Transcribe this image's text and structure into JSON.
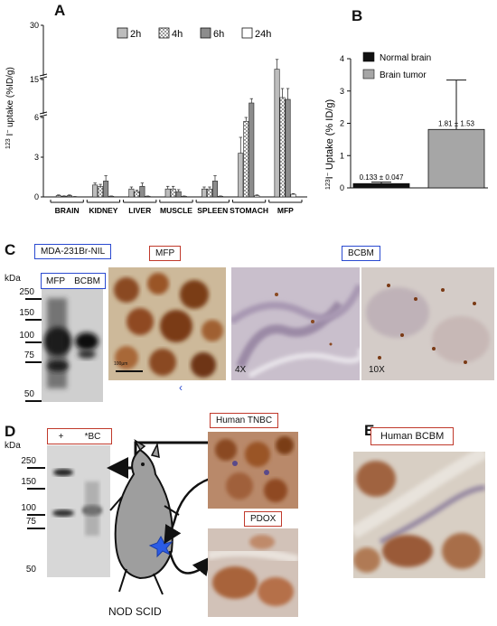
{
  "panels": {
    "a": "A",
    "b": "B",
    "c": "C",
    "d": "D",
    "e": "E"
  },
  "chart_data": [
    {
      "type": "bar",
      "ylabel": "123 I- uptake (%ID/g)",
      "ylabel_sup": "123",
      "ylabel_main": "I",
      "ylabel_rest": " uptake (%ID/g)",
      "y_ticks": [
        "0",
        "3",
        "6",
        "15",
        "30"
      ],
      "y_axis_break": true,
      "categories": [
        "BRAIN",
        "KIDNEY",
        "LIVER",
        "MUSCLE",
        "SPLEEN",
        "STOMACH",
        "MFP"
      ],
      "legend_placement": "top",
      "series": [
        {
          "name": "2h",
          "color": "#bdbdbd",
          "pattern": "solid",
          "values": [
            0.1,
            0.9,
            0.6,
            0.6,
            0.6,
            3.3,
            16.5
          ],
          "errors": [
            0.05,
            0.15,
            0.15,
            0.2,
            0.15,
            1.2,
            3.0
          ]
        },
        {
          "name": "4h",
          "color": "#e0e0e0",
          "pattern": "checker",
          "values": [
            0.05,
            0.8,
            0.4,
            0.6,
            0.6,
            5.7,
            10.0
          ],
          "errors": [
            0.03,
            0.15,
            0.1,
            0.2,
            0.15,
            0.3,
            2.5
          ]
        },
        {
          "name": "6h",
          "color": "#8c8c8c",
          "pattern": "solid",
          "values": [
            0.1,
            1.2,
            0.8,
            0.4,
            1.2,
            8.5,
            9.5
          ],
          "errors": [
            0.05,
            0.4,
            0.25,
            0.15,
            0.4,
            1.2,
            3.0
          ]
        },
        {
          "name": "24h",
          "color": "#ffffff",
          "pattern": "solid",
          "values": [
            0.02,
            0.05,
            0.05,
            0.05,
            0.05,
            0.1,
            0.2
          ],
          "errors": [
            0.01,
            0.02,
            0.02,
            0.02,
            0.02,
            0.05,
            0.05
          ]
        }
      ]
    },
    {
      "type": "bar",
      "ylabel_sup": "123",
      "ylabel_main": "I",
      "ylabel_rest": " Uptake (% ID/g)",
      "ylim": [
        0,
        4
      ],
      "y_ticks": [
        "0",
        "1",
        "2",
        "3",
        "4"
      ],
      "legend_placement": "top-left",
      "series": [
        {
          "name": "Normal brain",
          "color": "#111111",
          "values": [
            0.133
          ],
          "errors": [
            0.047
          ],
          "label": "0.133 ± 0.047"
        },
        {
          "name": "Brain tumor",
          "color": "#a6a6a6",
          "values": [
            1.81
          ],
          "errors": [
            1.53
          ],
          "label": "1.81 ± 1.53"
        }
      ]
    }
  ],
  "panel_c": {
    "title_box": "MDA-231Br-NIL",
    "kda": "kDa",
    "lanes": [
      "MFP",
      "BCBM"
    ],
    "markers": [
      "250",
      "150",
      "100",
      "75",
      "50"
    ],
    "mfp_label": "MFP",
    "bcbm_label": "BCBM",
    "scale_text": "100µm",
    "mag_4x": "4X",
    "mag_10x": "10X"
  },
  "panel_d": {
    "kda": "kDa",
    "lanes": [
      "+",
      "*BC"
    ],
    "markers": [
      "250",
      "150",
      "100",
      "75",
      "50"
    ],
    "tnbc_label": "Human TNBC",
    "pdox_label": "PDOX",
    "mouse_label": "NOD SCID"
  },
  "panel_e": {
    "label": "Human BCBM"
  }
}
